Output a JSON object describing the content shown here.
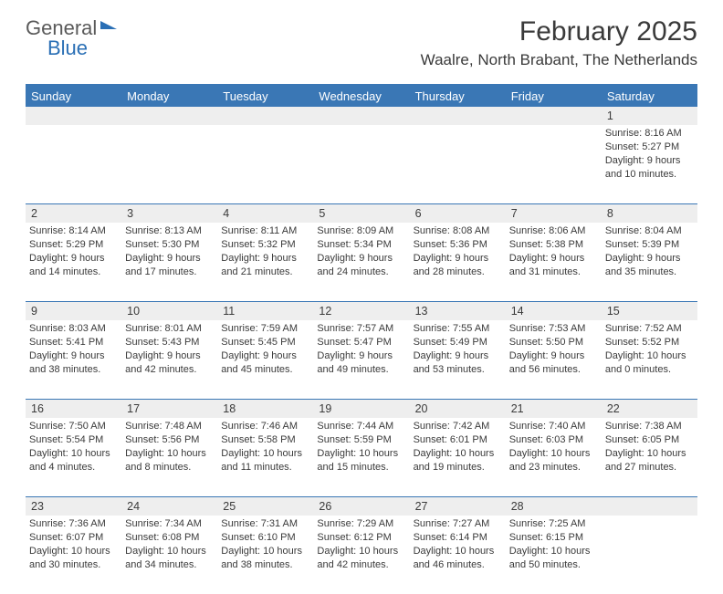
{
  "brand": {
    "part1": "General",
    "part2": "Blue"
  },
  "title": "February 2025",
  "location": "Waalre, North Brabant, The Netherlands",
  "colors": {
    "accent": "#3a77b5",
    "grayRow": "#eeeeee",
    "text": "#3a3a3a",
    "bg": "#ffffff"
  },
  "dayHeaders": [
    "Sunday",
    "Monday",
    "Tuesday",
    "Wednesday",
    "Thursday",
    "Friday",
    "Saturday"
  ],
  "layout": {
    "columns": 7,
    "rows": 5,
    "cell_fontsize_pt": 8,
    "header_fontsize_pt": 10
  },
  "weeks": [
    [
      null,
      null,
      null,
      null,
      null,
      null,
      {
        "n": "1",
        "sr": "Sunrise: 8:16 AM",
        "ss": "Sunset: 5:27 PM",
        "d1": "Daylight: 9 hours",
        "d2": "and 10 minutes."
      }
    ],
    [
      {
        "n": "2",
        "sr": "Sunrise: 8:14 AM",
        "ss": "Sunset: 5:29 PM",
        "d1": "Daylight: 9 hours",
        "d2": "and 14 minutes."
      },
      {
        "n": "3",
        "sr": "Sunrise: 8:13 AM",
        "ss": "Sunset: 5:30 PM",
        "d1": "Daylight: 9 hours",
        "d2": "and 17 minutes."
      },
      {
        "n": "4",
        "sr": "Sunrise: 8:11 AM",
        "ss": "Sunset: 5:32 PM",
        "d1": "Daylight: 9 hours",
        "d2": "and 21 minutes."
      },
      {
        "n": "5",
        "sr": "Sunrise: 8:09 AM",
        "ss": "Sunset: 5:34 PM",
        "d1": "Daylight: 9 hours",
        "d2": "and 24 minutes."
      },
      {
        "n": "6",
        "sr": "Sunrise: 8:08 AM",
        "ss": "Sunset: 5:36 PM",
        "d1": "Daylight: 9 hours",
        "d2": "and 28 minutes."
      },
      {
        "n": "7",
        "sr": "Sunrise: 8:06 AM",
        "ss": "Sunset: 5:38 PM",
        "d1": "Daylight: 9 hours",
        "d2": "and 31 minutes."
      },
      {
        "n": "8",
        "sr": "Sunrise: 8:04 AM",
        "ss": "Sunset: 5:39 PM",
        "d1": "Daylight: 9 hours",
        "d2": "and 35 minutes."
      }
    ],
    [
      {
        "n": "9",
        "sr": "Sunrise: 8:03 AM",
        "ss": "Sunset: 5:41 PM",
        "d1": "Daylight: 9 hours",
        "d2": "and 38 minutes."
      },
      {
        "n": "10",
        "sr": "Sunrise: 8:01 AM",
        "ss": "Sunset: 5:43 PM",
        "d1": "Daylight: 9 hours",
        "d2": "and 42 minutes."
      },
      {
        "n": "11",
        "sr": "Sunrise: 7:59 AM",
        "ss": "Sunset: 5:45 PM",
        "d1": "Daylight: 9 hours",
        "d2": "and 45 minutes."
      },
      {
        "n": "12",
        "sr": "Sunrise: 7:57 AM",
        "ss": "Sunset: 5:47 PM",
        "d1": "Daylight: 9 hours",
        "d2": "and 49 minutes."
      },
      {
        "n": "13",
        "sr": "Sunrise: 7:55 AM",
        "ss": "Sunset: 5:49 PM",
        "d1": "Daylight: 9 hours",
        "d2": "and 53 minutes."
      },
      {
        "n": "14",
        "sr": "Sunrise: 7:53 AM",
        "ss": "Sunset: 5:50 PM",
        "d1": "Daylight: 9 hours",
        "d2": "and 56 minutes."
      },
      {
        "n": "15",
        "sr": "Sunrise: 7:52 AM",
        "ss": "Sunset: 5:52 PM",
        "d1": "Daylight: 10 hours",
        "d2": "and 0 minutes."
      }
    ],
    [
      {
        "n": "16",
        "sr": "Sunrise: 7:50 AM",
        "ss": "Sunset: 5:54 PM",
        "d1": "Daylight: 10 hours",
        "d2": "and 4 minutes."
      },
      {
        "n": "17",
        "sr": "Sunrise: 7:48 AM",
        "ss": "Sunset: 5:56 PM",
        "d1": "Daylight: 10 hours",
        "d2": "and 8 minutes."
      },
      {
        "n": "18",
        "sr": "Sunrise: 7:46 AM",
        "ss": "Sunset: 5:58 PM",
        "d1": "Daylight: 10 hours",
        "d2": "and 11 minutes."
      },
      {
        "n": "19",
        "sr": "Sunrise: 7:44 AM",
        "ss": "Sunset: 5:59 PM",
        "d1": "Daylight: 10 hours",
        "d2": "and 15 minutes."
      },
      {
        "n": "20",
        "sr": "Sunrise: 7:42 AM",
        "ss": "Sunset: 6:01 PM",
        "d1": "Daylight: 10 hours",
        "d2": "and 19 minutes."
      },
      {
        "n": "21",
        "sr": "Sunrise: 7:40 AM",
        "ss": "Sunset: 6:03 PM",
        "d1": "Daylight: 10 hours",
        "d2": "and 23 minutes."
      },
      {
        "n": "22",
        "sr": "Sunrise: 7:38 AM",
        "ss": "Sunset: 6:05 PM",
        "d1": "Daylight: 10 hours",
        "d2": "and 27 minutes."
      }
    ],
    [
      {
        "n": "23",
        "sr": "Sunrise: 7:36 AM",
        "ss": "Sunset: 6:07 PM",
        "d1": "Daylight: 10 hours",
        "d2": "and 30 minutes."
      },
      {
        "n": "24",
        "sr": "Sunrise: 7:34 AM",
        "ss": "Sunset: 6:08 PM",
        "d1": "Daylight: 10 hours",
        "d2": "and 34 minutes."
      },
      {
        "n": "25",
        "sr": "Sunrise: 7:31 AM",
        "ss": "Sunset: 6:10 PM",
        "d1": "Daylight: 10 hours",
        "d2": "and 38 minutes."
      },
      {
        "n": "26",
        "sr": "Sunrise: 7:29 AM",
        "ss": "Sunset: 6:12 PM",
        "d1": "Daylight: 10 hours",
        "d2": "and 42 minutes."
      },
      {
        "n": "27",
        "sr": "Sunrise: 7:27 AM",
        "ss": "Sunset: 6:14 PM",
        "d1": "Daylight: 10 hours",
        "d2": "and 46 minutes."
      },
      {
        "n": "28",
        "sr": "Sunrise: 7:25 AM",
        "ss": "Sunset: 6:15 PM",
        "d1": "Daylight: 10 hours",
        "d2": "and 50 minutes."
      },
      null
    ]
  ]
}
